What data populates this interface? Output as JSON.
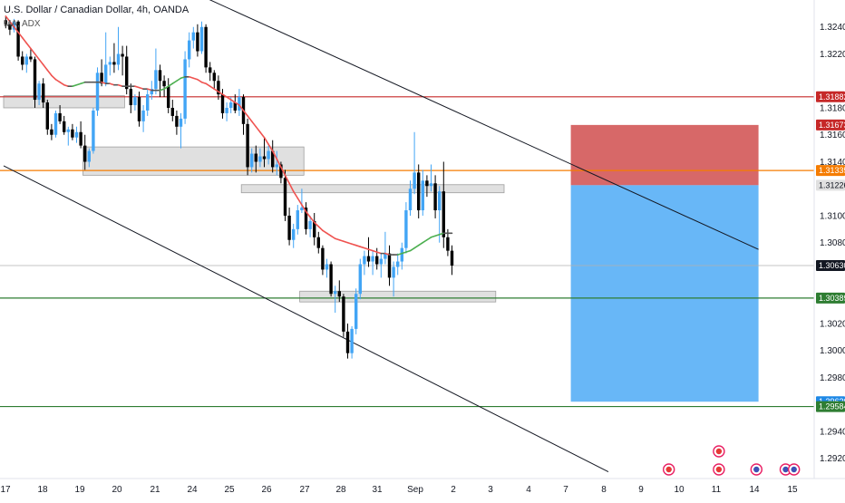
{
  "header": {
    "title": "U.S. Dollar / Canadian Dollar, 4h, OANDA",
    "indicator": "MA, ADX"
  },
  "chart_data": {
    "type": "candlestick",
    "symbol": "USDCAD",
    "timeframe": "4h",
    "price_axis": {
      "range": [
        1.2905,
        1.326
      ],
      "ticks": [
        "1.32400",
        "1.32200",
        "1.31800",
        "1.31600",
        "1.31400",
        "1.31000",
        "1.30800",
        "1.30200",
        "1.30000",
        "1.29800",
        "1.29400",
        "1.29200"
      ]
    },
    "time_axis": {
      "labels": [
        "17",
        "18",
        "19",
        "20",
        "21",
        "24",
        "25",
        "26",
        "27",
        "28",
        "31",
        "Sep",
        "2",
        "3",
        "4",
        "7",
        "8",
        "9",
        "10",
        "11",
        "14",
        "15"
      ]
    },
    "price_tags": [
      {
        "label": "1.31882",
        "value": 1.31882,
        "color": "#c62828"
      },
      {
        "label": "1.31673",
        "value": 1.31673,
        "color": "#c62828"
      },
      {
        "label": "1.31335",
        "value": 1.31335,
        "color": "#f57c00"
      },
      {
        "label": "1.31226",
        "value": 1.31226,
        "color": "#e0e0e0"
      },
      {
        "label": "1.30630",
        "value": 1.3063,
        "color": "#131722"
      },
      {
        "label": "1.30389",
        "value": 1.30389,
        "color": "#2e7d32"
      },
      {
        "label": "1.29620",
        "value": 1.2962,
        "color": "#1e88e5"
      },
      {
        "label": "1.29584",
        "value": 1.29584,
        "color": "#2e7d32"
      }
    ],
    "horizontal_lines": [
      {
        "value": 1.31882,
        "color": "#c62828"
      },
      {
        "value": 1.31335,
        "color": "#f57c00"
      },
      {
        "value": 1.30389,
        "color": "#2e7d32"
      },
      {
        "value": 1.29584,
        "color": "#2e7d32"
      },
      {
        "value": 1.3063,
        "color": "#b0b0b0"
      }
    ],
    "position_tool": {
      "entry": 1.31226,
      "stop": 1.31673,
      "target": 1.2962,
      "start_bar": 136,
      "end_bar": 181
    },
    "zones": [
      {
        "from_bar": 0,
        "to_bar": 29,
        "low": 1.318,
        "high": 1.3189
      },
      {
        "from_bar": 19,
        "to_bar": 72,
        "low": 1.313,
        "high": 1.3151
      },
      {
        "from_bar": 57,
        "to_bar": 120,
        "low": 1.3117,
        "high": 1.3123
      },
      {
        "from_bar": 71,
        "to_bar": 118,
        "low": 1.3036,
        "high": 1.3044
      }
    ],
    "trendlines": [
      {
        "from": [
          46,
          1.3265
        ],
        "to": [
          181,
          1.3075
        ]
      },
      {
        "from": [
          0,
          1.3137
        ],
        "to": [
          145,
          1.291
        ]
      }
    ],
    "candles": [
      [
        1.3245,
        1.3248,
        1.3239,
        1.3242
      ],
      [
        1.3242,
        1.3244,
        1.3234,
        1.3238
      ],
      [
        1.3238,
        1.3246,
        1.3236,
        1.3244
      ],
      [
        1.3244,
        1.3245,
        1.3215,
        1.3218
      ],
      [
        1.3218,
        1.3222,
        1.3208,
        1.3212
      ],
      [
        1.3212,
        1.322,
        1.3206,
        1.3218
      ],
      [
        1.3218,
        1.3224,
        1.3214,
        1.3216
      ],
      [
        1.3216,
        1.3218,
        1.318,
        1.3186
      ],
      [
        1.3186,
        1.32,
        1.3182,
        1.3198
      ],
      [
        1.3198,
        1.3202,
        1.318,
        1.3184
      ],
      [
        1.3184,
        1.3186,
        1.316,
        1.3164
      ],
      [
        1.3164,
        1.3168,
        1.3156,
        1.316
      ],
      [
        1.316,
        1.3178,
        1.3158,
        1.3176
      ],
      [
        1.3176,
        1.3182,
        1.3168,
        1.317
      ],
      [
        1.317,
        1.3174,
        1.316,
        1.3162
      ],
      [
        1.3162,
        1.3166,
        1.3152,
        1.3164
      ],
      [
        1.3164,
        1.3168,
        1.3156,
        1.3158
      ],
      [
        1.3158,
        1.3166,
        1.3154,
        1.3162
      ],
      [
        1.3162,
        1.317,
        1.315,
        1.3152
      ],
      [
        1.3152,
        1.316,
        1.3134,
        1.314
      ],
      [
        1.314,
        1.315,
        1.3136,
        1.3148
      ],
      [
        1.3148,
        1.318,
        1.3146,
        1.3178
      ],
      [
        1.3178,
        1.321,
        1.3174,
        1.3206
      ],
      [
        1.3206,
        1.3216,
        1.3196,
        1.3198
      ],
      [
        1.3198,
        1.3236,
        1.3196,
        1.3212
      ],
      [
        1.3212,
        1.3218,
        1.3204,
        1.3214
      ],
      [
        1.3214,
        1.3228,
        1.3206,
        1.3212
      ],
      [
        1.3212,
        1.324,
        1.3208,
        1.322
      ],
      [
        1.322,
        1.3226,
        1.3204,
        1.3218
      ],
      [
        1.3218,
        1.3226,
        1.319,
        1.3194
      ],
      [
        1.3194,
        1.3198,
        1.3176,
        1.3182
      ],
      [
        1.3182,
        1.319,
        1.3178,
        1.3188
      ],
      [
        1.3188,
        1.3192,
        1.3166,
        1.317
      ],
      [
        1.317,
        1.3182,
        1.3162,
        1.3178
      ],
      [
        1.3178,
        1.3194,
        1.3174,
        1.319
      ],
      [
        1.319,
        1.32,
        1.3186,
        1.3194
      ],
      [
        1.3194,
        1.3224,
        1.319,
        1.3208
      ],
      [
        1.3208,
        1.3212,
        1.3188,
        1.32
      ],
      [
        1.32,
        1.3204,
        1.3188,
        1.3196
      ],
      [
        1.3196,
        1.3202,
        1.3176,
        1.318
      ],
      [
        1.318,
        1.3186,
        1.317,
        1.3174
      ],
      [
        1.3174,
        1.3178,
        1.316,
        1.3166
      ],
      [
        1.3166,
        1.3176,
        1.315,
        1.3172
      ],
      [
        1.3172,
        1.3222,
        1.3168,
        1.3216
      ],
      [
        1.3216,
        1.3236,
        1.321,
        1.323
      ],
      [
        1.323,
        1.324,
        1.3224,
        1.3236
      ],
      [
        1.3236,
        1.3242,
        1.3218,
        1.3222
      ],
      [
        1.3222,
        1.3244,
        1.322,
        1.324
      ],
      [
        1.324,
        1.3242,
        1.3206,
        1.321
      ],
      [
        1.321,
        1.3214,
        1.32,
        1.3206
      ],
      [
        1.3206,
        1.3208,
        1.3194,
        1.32
      ],
      [
        1.32,
        1.3204,
        1.3186,
        1.319
      ],
      [
        1.319,
        1.3194,
        1.3172,
        1.3176
      ],
      [
        1.3176,
        1.3184,
        1.317,
        1.318
      ],
      [
        1.318,
        1.3188,
        1.3176,
        1.3184
      ],
      [
        1.3184,
        1.319,
        1.3176,
        1.3178
      ],
      [
        1.3178,
        1.3194,
        1.3174,
        1.3188
      ],
      [
        1.3188,
        1.319,
        1.316,
        1.3168
      ],
      [
        1.3168,
        1.3172,
        1.313,
        1.3136
      ],
      [
        1.3136,
        1.315,
        1.3132,
        1.3146
      ],
      [
        1.3146,
        1.3152,
        1.3132,
        1.314
      ],
      [
        1.314,
        1.315,
        1.3136,
        1.3144
      ],
      [
        1.3144,
        1.3158,
        1.3136,
        1.3142
      ],
      [
        1.3142,
        1.3152,
        1.3138,
        1.3148
      ],
      [
        1.3148,
        1.3156,
        1.3132,
        1.3136
      ],
      [
        1.3136,
        1.3148,
        1.313,
        1.3138
      ],
      [
        1.3138,
        1.314,
        1.3124,
        1.3128
      ],
      [
        1.3128,
        1.3134,
        1.3096,
        1.31
      ],
      [
        1.31,
        1.3106,
        1.3078,
        1.3082
      ],
      [
        1.3082,
        1.3094,
        1.3076,
        1.309
      ],
      [
        1.309,
        1.3108,
        1.3086,
        1.3104
      ],
      [
        1.3104,
        1.312,
        1.3102,
        1.3106
      ],
      [
        1.3106,
        1.311,
        1.3086,
        1.309
      ],
      [
        1.309,
        1.31,
        1.3084,
        1.3096
      ],
      [
        1.3096,
        1.3102,
        1.3078,
        1.3084
      ],
      [
        1.3084,
        1.3088,
        1.3072,
        1.3076
      ],
      [
        1.3076,
        1.3078,
        1.3056,
        1.306
      ],
      [
        1.306,
        1.3068,
        1.3054,
        1.3064
      ],
      [
        1.3064,
        1.3066,
        1.304,
        1.3042
      ],
      [
        1.3042,
        1.3048,
        1.3028,
        1.3044
      ],
      [
        1.3044,
        1.3052,
        1.3036,
        1.304
      ],
      [
        1.304,
        1.3042,
        1.301,
        1.3014
      ],
      [
        1.3014,
        1.302,
        1.2994,
        1.2998
      ],
      [
        1.2998,
        1.3018,
        1.2994,
        1.3016
      ],
      [
        1.3016,
        1.3046,
        1.3012,
        1.3042
      ],
      [
        1.3042,
        1.3068,
        1.3038,
        1.3064
      ],
      [
        1.3064,
        1.3074,
        1.3056,
        1.307
      ],
      [
        1.307,
        1.3084,
        1.3062,
        1.3066
      ],
      [
        1.3066,
        1.3074,
        1.3056,
        1.307
      ],
      [
        1.307,
        1.3076,
        1.306,
        1.3064
      ],
      [
        1.3064,
        1.3072,
        1.3054,
        1.3068
      ],
      [
        1.3068,
        1.3088,
        1.3064,
        1.3072
      ],
      [
        1.3072,
        1.3078,
        1.3048,
        1.3054
      ],
      [
        1.3054,
        1.3066,
        1.304,
        1.3062
      ],
      [
        1.3062,
        1.3072,
        1.3056,
        1.3066
      ],
      [
        1.3066,
        1.308,
        1.306,
        1.3076
      ],
      [
        1.3076,
        1.311,
        1.3072,
        1.3104
      ],
      [
        1.3104,
        1.3126,
        1.31,
        1.312
      ],
      [
        1.312,
        1.3162,
        1.3116,
        1.3132
      ],
      [
        1.3132,
        1.3138,
        1.3098,
        1.3104
      ],
      [
        1.3104,
        1.3134,
        1.31,
        1.3126
      ],
      [
        1.3126,
        1.313,
        1.3114,
        1.3122
      ],
      [
        1.3122,
        1.3138,
        1.3118,
        1.3124
      ],
      [
        1.3124,
        1.313,
        1.3098,
        1.3104
      ],
      [
        1.3104,
        1.3122,
        1.308,
        1.3118
      ],
      [
        1.3118,
        1.314,
        1.3076,
        1.3084
      ],
      [
        1.3084,
        1.309,
        1.307,
        1.3074
      ],
      [
        1.3074,
        1.3078,
        1.3056,
        1.3063
      ]
    ],
    "moving_average": {
      "start_bar": 0,
      "values": [
        1.3248,
        1.3244,
        1.324,
        1.3236,
        1.3232,
        1.3228,
        1.3224,
        1.322,
        1.3216,
        1.3212,
        1.3208,
        1.3204,
        1.3201,
        1.3199,
        1.3197,
        1.3196,
        1.3196,
        1.3197,
        1.3198,
        1.3199,
        1.3199,
        1.3199,
        1.3199,
        1.3199,
        1.3198,
        1.3198,
        1.3197,
        1.3197,
        1.3196,
        1.3196,
        1.3196,
        1.3196,
        1.3195,
        1.3194,
        1.3194,
        1.3193,
        1.3193,
        1.3193,
        1.3194,
        1.3196,
        1.3198,
        1.32,
        1.3202,
        1.3203,
        1.3203,
        1.3202,
        1.3201,
        1.3199,
        1.3198,
        1.3196,
        1.3194,
        1.3192,
        1.319,
        1.3188,
        1.3186,
        1.3184,
        1.3182,
        1.3178,
        1.3174,
        1.317,
        1.3166,
        1.3162,
        1.3158,
        1.3153,
        1.3148,
        1.3142,
        1.3136,
        1.313,
        1.3124,
        1.3118,
        1.3113,
        1.3108,
        1.3103,
        1.3099,
        1.3095,
        1.3092,
        1.3089,
        1.3087,
        1.3085,
        1.3083,
        1.3082,
        1.3081,
        1.308,
        1.3079,
        1.3078,
        1.3077,
        1.3076,
        1.3075,
        1.3074,
        1.3073,
        1.3072,
        1.3072,
        1.3071,
        1.3071,
        1.3071,
        1.3072,
        1.3073,
        1.3074,
        1.3076,
        1.3078,
        1.308,
        1.3082,
        1.3084,
        1.3085,
        1.3086,
        1.3087,
        1.3087,
        1.3087
      ],
      "colors": {
        "up": "#4caf50",
        "down": "#ef5350",
        "flat": "#555555"
      }
    },
    "event_markers": [
      {
        "bar": 159,
        "row": 0,
        "flag": "CA"
      },
      {
        "bar": 171,
        "row": 0,
        "flag": "CA"
      },
      {
        "bar": 171,
        "row": 1,
        "flag": "CA"
      },
      {
        "bar": 180,
        "row": 0,
        "flag": "US"
      },
      {
        "bar": 187,
        "row": 0,
        "flag": "US"
      },
      {
        "bar": 189,
        "row": 0,
        "flag": "US"
      }
    ],
    "colors": {
      "candle_up": "#42a5f5",
      "candle_down": "#000000",
      "zone_fill": "#dadada",
      "stop_fill": "#c62828",
      "target_fill": "#42a5f5",
      "grid": "#f0f3fa"
    },
    "grid": false
  }
}
